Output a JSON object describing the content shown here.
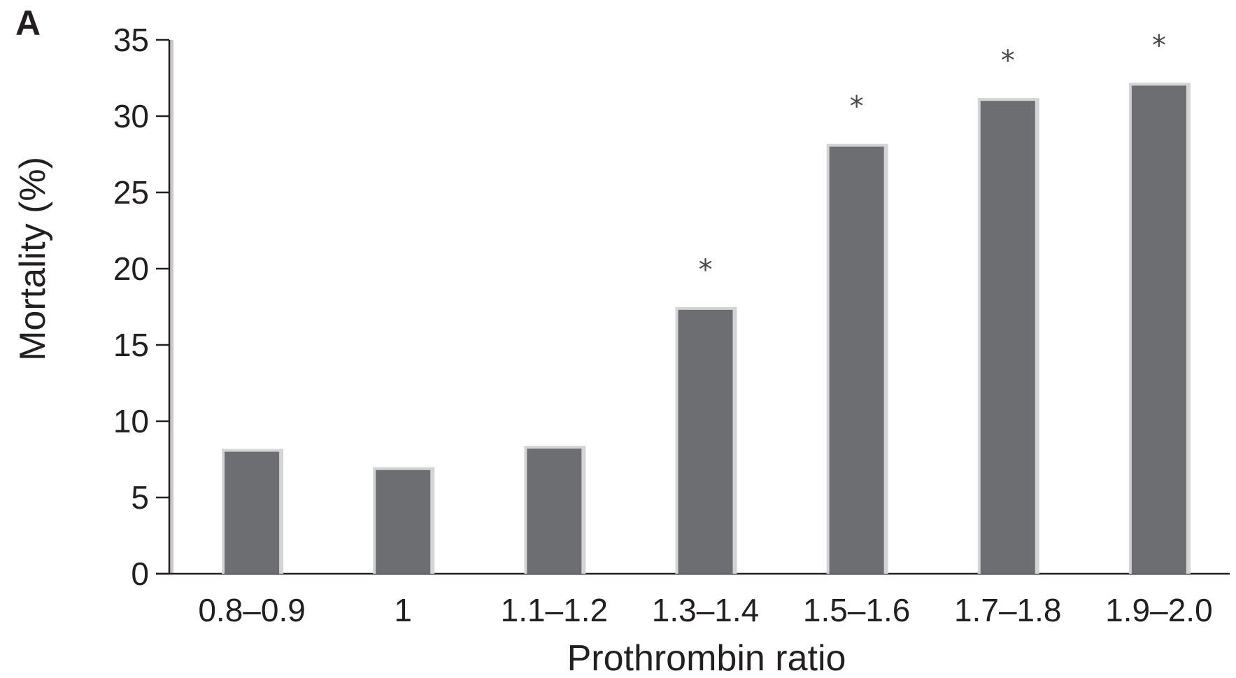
{
  "chart_data": {
    "type": "bar",
    "panel_label": "A",
    "title": "",
    "xlabel": "Prothrombin ratio",
    "ylabel": "Mortality (%)",
    "ylim": [
      0,
      35
    ],
    "yticks": [
      0,
      5,
      10,
      15,
      20,
      25,
      30,
      35
    ],
    "categories": [
      "0.8–0.9",
      "1",
      "1.1–1.2",
      "1.3–1.4",
      "1.5–1.6",
      "1.7–1.8",
      "1.9–2.0"
    ],
    "values": [
      8.0,
      6.8,
      8.2,
      17.3,
      28.0,
      31.0,
      32.0
    ],
    "annotations": [
      "",
      "",
      "",
      "*",
      "*",
      "*",
      "*"
    ],
    "grid": false,
    "legend": "none",
    "colors": {
      "bar": "#6d6e71",
      "bar_shadow": "#d4d4d4",
      "axis": "#231f20"
    }
  }
}
